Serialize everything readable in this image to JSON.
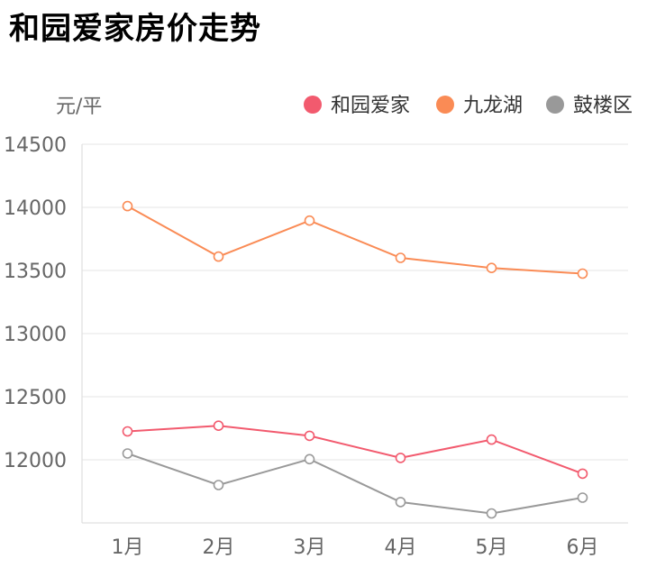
{
  "title": "和园爱家房价走势",
  "chart_data": {
    "type": "line",
    "title": "和园爱家房价走势",
    "ylabel": "元/平",
    "xlabel": "",
    "categories": [
      "1月",
      "2月",
      "3月",
      "4月",
      "5月",
      "6月"
    ],
    "ylim": [
      11500,
      14500
    ],
    "yticks": [
      12000,
      12500,
      13000,
      13500,
      14000,
      14500
    ],
    "grid": true,
    "legend_position": "top-right",
    "series": [
      {
        "name": "和园爱家",
        "color": "#f25a6e",
        "values": [
          12225,
          12270,
          12190,
          12015,
          12160,
          11890
        ]
      },
      {
        "name": "九龙湖",
        "color": "#fa8b55",
        "values": [
          14010,
          13610,
          13895,
          13600,
          13520,
          13475
        ]
      },
      {
        "name": "鼓楼区",
        "color": "#999999",
        "values": [
          12050,
          11800,
          12005,
          11665,
          11575,
          11700
        ]
      }
    ]
  }
}
